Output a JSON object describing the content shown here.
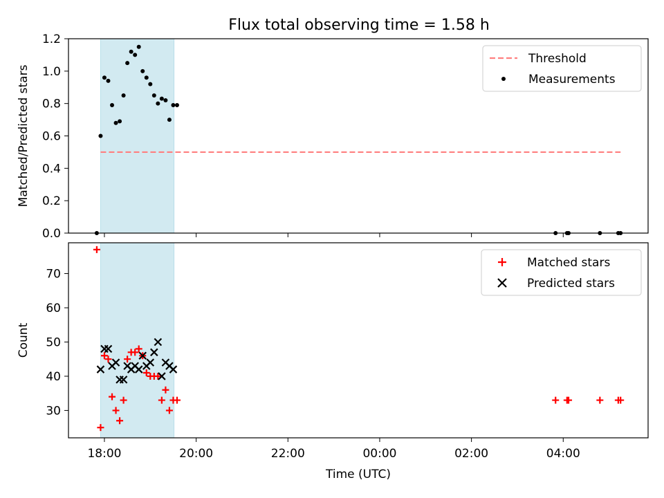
{
  "title": "Flux total observing time = 1.58 h",
  "chart_data": [
    {
      "type": "scatter",
      "title": "Flux total observing time = 1.58 h",
      "xlabel": "",
      "ylabel": "Matched/Predicted stars",
      "x_axis": {
        "type": "time",
        "tick_labels": [
          "18:00",
          "20:00",
          "22:00",
          "00:00",
          "02:00",
          "04:00"
        ],
        "show_tick_labels": false,
        "range": [
          "17:13",
          "05:51"
        ]
      },
      "ylim": [
        0,
        1.2
      ],
      "y_ticks": [
        "0.0",
        "0.2",
        "0.4",
        "0.6",
        "0.8",
        "1.0",
        "1.2"
      ],
      "highlight_span": {
        "from": "17:55",
        "to": "19:31",
        "color": "#add8e6"
      },
      "legend": {
        "placement": "top-right",
        "entries": [
          "Threshold",
          "Measurements"
        ]
      },
      "series": [
        {
          "name": "Threshold",
          "style": "dashed-line",
          "color": "#ff7f7f",
          "x": [
            "17:55",
            "05:15"
          ],
          "y": [
            0.5,
            0.5
          ]
        },
        {
          "name": "Measurements",
          "style": "dots",
          "color": "#000000",
          "x": [
            "17:50",
            "17:55",
            "18:00",
            "18:05",
            "18:10",
            "18:15",
            "18:20",
            "18:25",
            "18:30",
            "18:35",
            "18:40",
            "18:45",
            "18:50",
            "18:55",
            "19:00",
            "19:05",
            "19:10",
            "19:15",
            "19:20",
            "19:25",
            "19:30",
            "19:35",
            "03:50",
            "04:05",
            "04:07",
            "04:48",
            "05:12",
            "05:15"
          ],
          "y": [
            0.0,
            0.6,
            0.96,
            0.94,
            0.79,
            0.68,
            0.69,
            0.85,
            1.05,
            1.12,
            1.1,
            1.15,
            1.0,
            0.96,
            0.92,
            0.85,
            0.8,
            0.83,
            0.82,
            0.7,
            0.79,
            0.79,
            0.0,
            0.0,
            0.0,
            0.0,
            0.0,
            0.0
          ]
        }
      ]
    },
    {
      "type": "scatter",
      "title": "",
      "xlabel": "Time (UTC)",
      "ylabel": "Count",
      "x_axis": {
        "type": "time",
        "tick_labels": [
          "18:00",
          "20:00",
          "22:00",
          "00:00",
          "02:00",
          "04:00"
        ],
        "range": [
          "17:13",
          "05:51"
        ]
      },
      "ylim": [
        22,
        79
      ],
      "y_ticks": [
        "30",
        "40",
        "50",
        "60",
        "70"
      ],
      "highlight_span": {
        "from": "17:55",
        "to": "19:31",
        "color": "#add8e6"
      },
      "legend": {
        "placement": "top-right",
        "entries": [
          "Matched stars",
          "Predicted stars"
        ]
      },
      "series": [
        {
          "name": "Matched stars",
          "marker": "plus",
          "color": "#ff0000",
          "x": [
            "17:50",
            "17:55",
            "18:00",
            "18:05",
            "18:10",
            "18:15",
            "18:20",
            "18:25",
            "18:30",
            "18:35",
            "18:40",
            "18:45",
            "18:50",
            "18:55",
            "19:00",
            "19:05",
            "19:10",
            "19:15",
            "19:20",
            "19:25",
            "19:30",
            "19:35",
            "03:50",
            "04:05",
            "04:07",
            "04:48",
            "05:12",
            "05:15"
          ],
          "y": [
            77,
            25,
            46,
            45,
            34,
            30,
            27,
            33,
            45,
            47,
            47,
            48,
            46,
            41,
            40,
            40,
            40,
            33,
            36,
            30,
            33,
            33,
            33,
            33,
            33,
            33,
            33,
            33
          ]
        },
        {
          "name": "Predicted stars",
          "marker": "x",
          "color": "#000000",
          "x": [
            "17:55",
            "18:00",
            "18:05",
            "18:10",
            "18:15",
            "18:20",
            "18:25",
            "18:30",
            "18:35",
            "18:40",
            "18:45",
            "18:50",
            "18:55",
            "19:00",
            "19:05",
            "19:10",
            "19:15",
            "19:20",
            "19:25",
            "19:30"
          ],
          "y": [
            42,
            48,
            48,
            43,
            44,
            39,
            39,
            43,
            42,
            43,
            42,
            46,
            43,
            44,
            47,
            50,
            40,
            44,
            43,
            42
          ]
        }
      ]
    }
  ]
}
